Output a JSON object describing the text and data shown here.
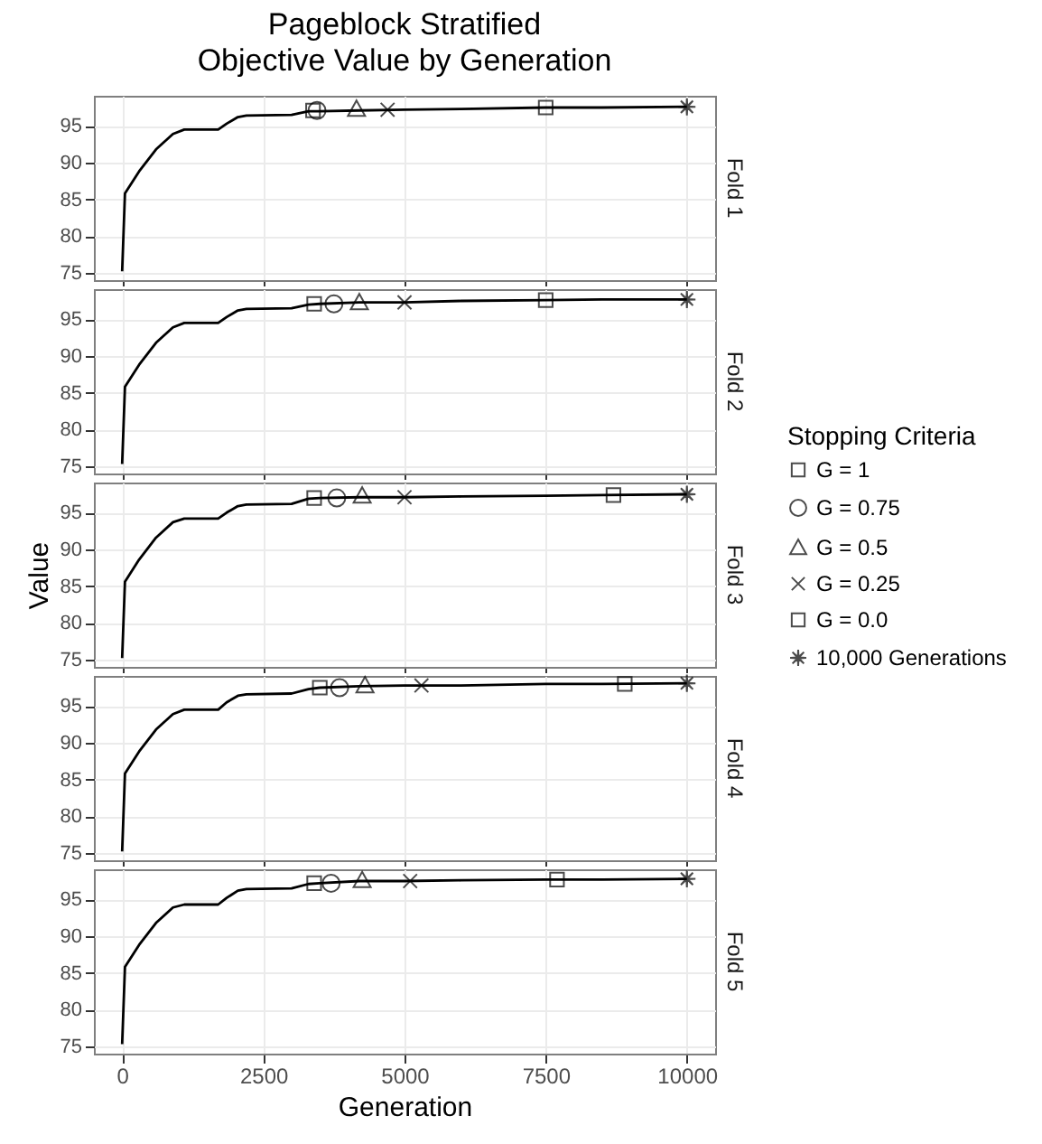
{
  "chart_data": [
    {
      "type": "line",
      "title": "Pageblock Stratified",
      "subtitle": "Objective Value by Generation",
      "y2label": "Fold 1",
      "xlim": [
        -500,
        10500
      ],
      "xticks": [
        0,
        2500,
        5000,
        7500,
        10000
      ],
      "ylim": [
        74,
        99.1
      ],
      "yticks": [
        75,
        80,
        85,
        90,
        95
      ],
      "grid": true,
      "tick_labels": "y",
      "legend": false,
      "series": [
        {
          "color": "#000000",
          "x": [
            0,
            50,
            300,
            600,
            900,
            1100,
            1700,
            1850,
            2050,
            2200,
            3000,
            3300,
            3500,
            4200,
            5000,
            6000,
            7500,
            8500,
            10000
          ],
          "values": [
            75.2,
            85.8,
            88.8,
            91.8,
            93.9,
            94.5,
            94.5,
            95.3,
            96.2,
            96.4,
            96.5,
            97.0,
            97.0,
            97.1,
            97.2,
            97.3,
            97.5,
            97.5,
            97.6
          ]
        },
        {
          "type": "scatter",
          "marker": "square",
          "color": "#000000",
          "x": [
            3380
          ],
          "values": [
            97.1
          ]
        },
        {
          "type": "scatter",
          "marker": "circle",
          "color": "#000000",
          "x": [
            3450
          ],
          "values": [
            97.1
          ]
        },
        {
          "type": "scatter",
          "marker": "triangle",
          "color": "#000000",
          "x": [
            4150
          ],
          "values": [
            97.3
          ]
        },
        {
          "type": "scatter",
          "marker": "cross",
          "color": "#000000",
          "x": [
            4700
          ],
          "values": [
            97.2
          ]
        },
        {
          "type": "scatter",
          "marker": "square",
          "color": "#000000",
          "x": [
            7500
          ],
          "values": [
            97.5
          ]
        },
        {
          "type": "scatter",
          "marker": "star",
          "color": "#000000",
          "x": [
            10000
          ],
          "values": [
            97.6
          ]
        }
      ]
    },
    {
      "type": "line",
      "y2label": "Fold 2",
      "xlim": [
        -500,
        10500
      ],
      "xticks": [
        0,
        2500,
        5000,
        7500,
        10000
      ],
      "ylim": [
        74,
        99.1
      ],
      "yticks": [
        75,
        80,
        85,
        90,
        95
      ],
      "grid": true,
      "tick_labels": "y",
      "legend": false,
      "series": [
        {
          "color": "#000000",
          "x": [
            0,
            50,
            300,
            600,
            900,
            1100,
            1700,
            1850,
            2050,
            2200,
            3000,
            3300,
            3500,
            4200,
            5000,
            6000,
            7500,
            8500,
            10000
          ],
          "values": [
            75.3,
            85.8,
            88.8,
            91.8,
            93.9,
            94.5,
            94.5,
            95.3,
            96.2,
            96.4,
            96.5,
            97.0,
            97.1,
            97.3,
            97.3,
            97.5,
            97.6,
            97.7,
            97.7
          ]
        },
        {
          "type": "scatter",
          "marker": "square",
          "color": "#000000",
          "x": [
            3400
          ],
          "values": [
            97.1
          ]
        },
        {
          "type": "scatter",
          "marker": "circle",
          "color": "#000000",
          "x": [
            3750
          ],
          "values": [
            97.1
          ]
        },
        {
          "type": "scatter",
          "marker": "triangle",
          "color": "#000000",
          "x": [
            4200
          ],
          "values": [
            97.3
          ]
        },
        {
          "type": "scatter",
          "marker": "cross",
          "color": "#000000",
          "x": [
            5000
          ],
          "values": [
            97.3
          ]
        },
        {
          "type": "scatter",
          "marker": "square",
          "color": "#000000",
          "x": [
            7500
          ],
          "values": [
            97.6
          ]
        },
        {
          "type": "scatter",
          "marker": "star",
          "color": "#000000",
          "x": [
            10000
          ],
          "values": [
            97.7
          ]
        }
      ]
    },
    {
      "type": "line",
      "ylabel": "Value",
      "y2label": "Fold 3",
      "legend_title": "Stopping Criteria",
      "xlim": [
        -500,
        10500
      ],
      "xticks": [
        0,
        2500,
        5000,
        7500,
        10000
      ],
      "ylim": [
        74,
        99.1
      ],
      "yticks": [
        75,
        80,
        85,
        90,
        95
      ],
      "grid": true,
      "tick_labels": "y",
      "legend": "right",
      "series": [
        {
          "color": "#000000",
          "x": [
            0,
            50,
            300,
            600,
            900,
            1100,
            1700,
            1850,
            2050,
            2200,
            3000,
            3300,
            3500,
            4200,
            5000,
            6000,
            7500,
            8500,
            10000
          ],
          "values": [
            75.2,
            85.6,
            88.6,
            91.6,
            93.7,
            94.2,
            94.2,
            95.0,
            95.9,
            96.1,
            96.2,
            96.9,
            97.0,
            97.1,
            97.1,
            97.2,
            97.3,
            97.4,
            97.5
          ]
        },
        {
          "type": "scatter",
          "name": "G = 1",
          "marker": "square",
          "color": "#000000",
          "x": [
            3400
          ],
          "values": [
            97.0
          ]
        },
        {
          "type": "scatter",
          "name": "G = 0.75",
          "marker": "circle",
          "color": "#000000",
          "x": [
            3800
          ],
          "values": [
            97.0
          ]
        },
        {
          "type": "scatter",
          "name": "G = 0.5",
          "marker": "triangle",
          "color": "#000000",
          "x": [
            4250
          ],
          "values": [
            97.3
          ]
        },
        {
          "type": "scatter",
          "name": "G = 0.25",
          "marker": "cross",
          "color": "#000000",
          "x": [
            5000
          ],
          "values": [
            97.1
          ]
        },
        {
          "type": "scatter",
          "name": "G = 0.0",
          "marker": "square",
          "color": "#000000",
          "x": [
            8700
          ],
          "values": [
            97.4
          ]
        },
        {
          "type": "scatter",
          "name": "10,000 Generations",
          "marker": "star",
          "color": "#000000",
          "x": [
            10000
          ],
          "values": [
            97.5
          ]
        }
      ]
    },
    {
      "type": "line",
      "y2label": "Fold 4",
      "xlim": [
        -500,
        10500
      ],
      "xticks": [
        0,
        2500,
        5000,
        7500,
        10000
      ],
      "ylim": [
        74,
        99.1
      ],
      "yticks": [
        75,
        80,
        85,
        90,
        95
      ],
      "grid": true,
      "tick_labels": "y",
      "legend": false,
      "series": [
        {
          "color": "#000000",
          "x": [
            0,
            50,
            300,
            600,
            900,
            1100,
            1700,
            1850,
            2050,
            2200,
            3000,
            3300,
            3500,
            4200,
            5000,
            6000,
            7500,
            8500,
            10000
          ],
          "values": [
            75.2,
            85.8,
            88.8,
            91.8,
            93.9,
            94.5,
            94.5,
            95.5,
            96.4,
            96.6,
            96.7,
            97.3,
            97.5,
            97.7,
            97.8,
            97.8,
            98.0,
            98.0,
            98.1
          ]
        },
        {
          "type": "scatter",
          "marker": "square",
          "color": "#000000",
          "x": [
            3500
          ],
          "values": [
            97.5
          ]
        },
        {
          "type": "scatter",
          "marker": "circle",
          "color": "#000000",
          "x": [
            3850
          ],
          "values": [
            97.5
          ]
        },
        {
          "type": "scatter",
          "marker": "triangle",
          "color": "#000000",
          "x": [
            4300
          ],
          "values": [
            97.8
          ]
        },
        {
          "type": "scatter",
          "marker": "cross",
          "color": "#000000",
          "x": [
            5300
          ],
          "values": [
            97.8
          ]
        },
        {
          "type": "scatter",
          "marker": "square",
          "color": "#000000",
          "x": [
            8900
          ],
          "values": [
            98.0
          ]
        },
        {
          "type": "scatter",
          "marker": "star",
          "color": "#000000",
          "x": [
            10000
          ],
          "values": [
            98.1
          ]
        }
      ]
    },
    {
      "type": "line",
      "xlabel": "Generation",
      "y2label": "Fold 5",
      "xlim": [
        -500,
        10500
      ],
      "xticks": [
        0,
        2500,
        5000,
        7500,
        10000
      ],
      "ylim": [
        74,
        99.1
      ],
      "yticks": [
        75,
        80,
        85,
        90,
        95
      ],
      "grid": true,
      "legend": false,
      "line_style": "solid",
      "series": [
        {
          "color": "#000000",
          "x": [
            0,
            50,
            300,
            600,
            900,
            1100,
            1700,
            1850,
            2050,
            2200,
            3000,
            3300,
            3500,
            4200,
            5000,
            6000,
            7500,
            8500,
            10000
          ],
          "values": [
            75.3,
            85.8,
            88.8,
            91.8,
            93.9,
            94.3,
            94.3,
            95.2,
            96.2,
            96.4,
            96.5,
            97.1,
            97.2,
            97.5,
            97.5,
            97.6,
            97.7,
            97.7,
            97.8
          ]
        },
        {
          "type": "scatter",
          "marker": "square",
          "color": "#000000",
          "x": [
            3400
          ],
          "values": [
            97.2
          ]
        },
        {
          "type": "scatter",
          "marker": "circle",
          "color": "#000000",
          "x": [
            3700
          ],
          "values": [
            97.2
          ]
        },
        {
          "type": "scatter",
          "marker": "triangle",
          "color": "#000000",
          "x": [
            4250
          ],
          "values": [
            97.6
          ]
        },
        {
          "type": "scatter",
          "marker": "cross",
          "color": "#000000",
          "x": [
            5100
          ],
          "values": [
            97.5
          ]
        },
        {
          "type": "scatter",
          "marker": "square",
          "color": "#000000",
          "x": [
            7700
          ],
          "values": [
            97.7
          ]
        },
        {
          "type": "scatter",
          "marker": "star",
          "color": "#000000",
          "x": [
            10000
          ],
          "values": [
            97.8
          ]
        }
      ]
    }
  ]
}
